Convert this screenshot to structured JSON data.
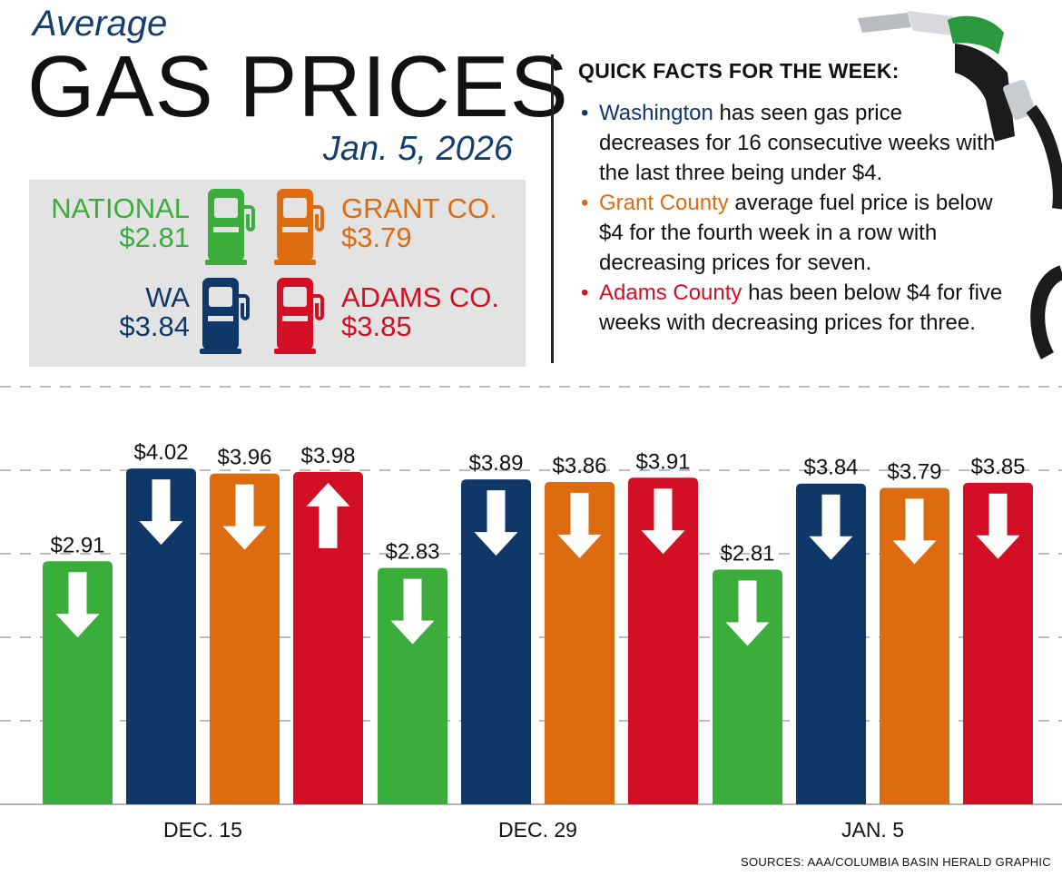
{
  "header": {
    "eyebrow": "Average",
    "title": "GAS PRICES",
    "date": "Jan. 5, 2026"
  },
  "summary": [
    {
      "name": "NATIONAL",
      "price": "$2.81",
      "color": "#3aad3a"
    },
    {
      "name": "GRANT CO.",
      "price": "$3.79",
      "color": "#dd6b0f"
    },
    {
      "name": "WA",
      "price": "$3.84",
      "color": "#0f3868"
    },
    {
      "name": "ADAMS CO.",
      "price": "$3.85",
      "color": "#d20f24"
    }
  ],
  "facts": {
    "title": "QUICK FACTS FOR THE WEEK:",
    "items": [
      {
        "highlight": "Washington",
        "text": " has seen gas price decreases for 16 consecutive weeks with the last three being under $4.",
        "color": "#0f3868"
      },
      {
        "highlight": "Grant County",
        "text": " average fuel price is below $4 for the fourth week in a row with decreasing prices for seven.",
        "color": "#dd6b0f"
      },
      {
        "highlight": "Adams County",
        "text": " has been below $4 for five weeks with decreasing prices for three.",
        "color": "#d20f24"
      }
    ]
  },
  "chart_data": {
    "type": "bar",
    "title": "Average Gas Prices",
    "categories": [
      "DEC. 15",
      "DEC. 29",
      "JAN. 5"
    ],
    "series": [
      {
        "name": "National",
        "color": "#3aad3a",
        "values": [
          2.91,
          2.83,
          2.81
        ],
        "labels": [
          "$2.91",
          "$2.83",
          "$2.81"
        ],
        "trend": [
          "down",
          "down",
          "down"
        ]
      },
      {
        "name": "WA",
        "color": "#0f3868",
        "values": [
          4.02,
          3.89,
          3.84
        ],
        "labels": [
          "$4.02",
          "$3.89",
          "$3.84"
        ],
        "trend": [
          "down",
          "down",
          "down"
        ]
      },
      {
        "name": "Grant Co.",
        "color": "#dd6b0f",
        "values": [
          3.96,
          3.86,
          3.79
        ],
        "labels": [
          "$3.96",
          "$3.86",
          "$3.79"
        ],
        "trend": [
          "down",
          "down",
          "down"
        ]
      },
      {
        "name": "Adams Co.",
        "color": "#d20f24",
        "values": [
          3.98,
          3.91,
          3.85
        ],
        "labels": [
          "$3.98",
          "$3.91",
          "$3.85"
        ],
        "trend": [
          "up",
          "down",
          "down"
        ]
      }
    ],
    "ylim": [
      0,
      5.0
    ],
    "grid": true,
    "xlabel": "",
    "ylabel": ""
  },
  "footer": {
    "sources": "SOURCES: AAA/COLUMBIA BASIN HERALD GRAPHIC"
  }
}
